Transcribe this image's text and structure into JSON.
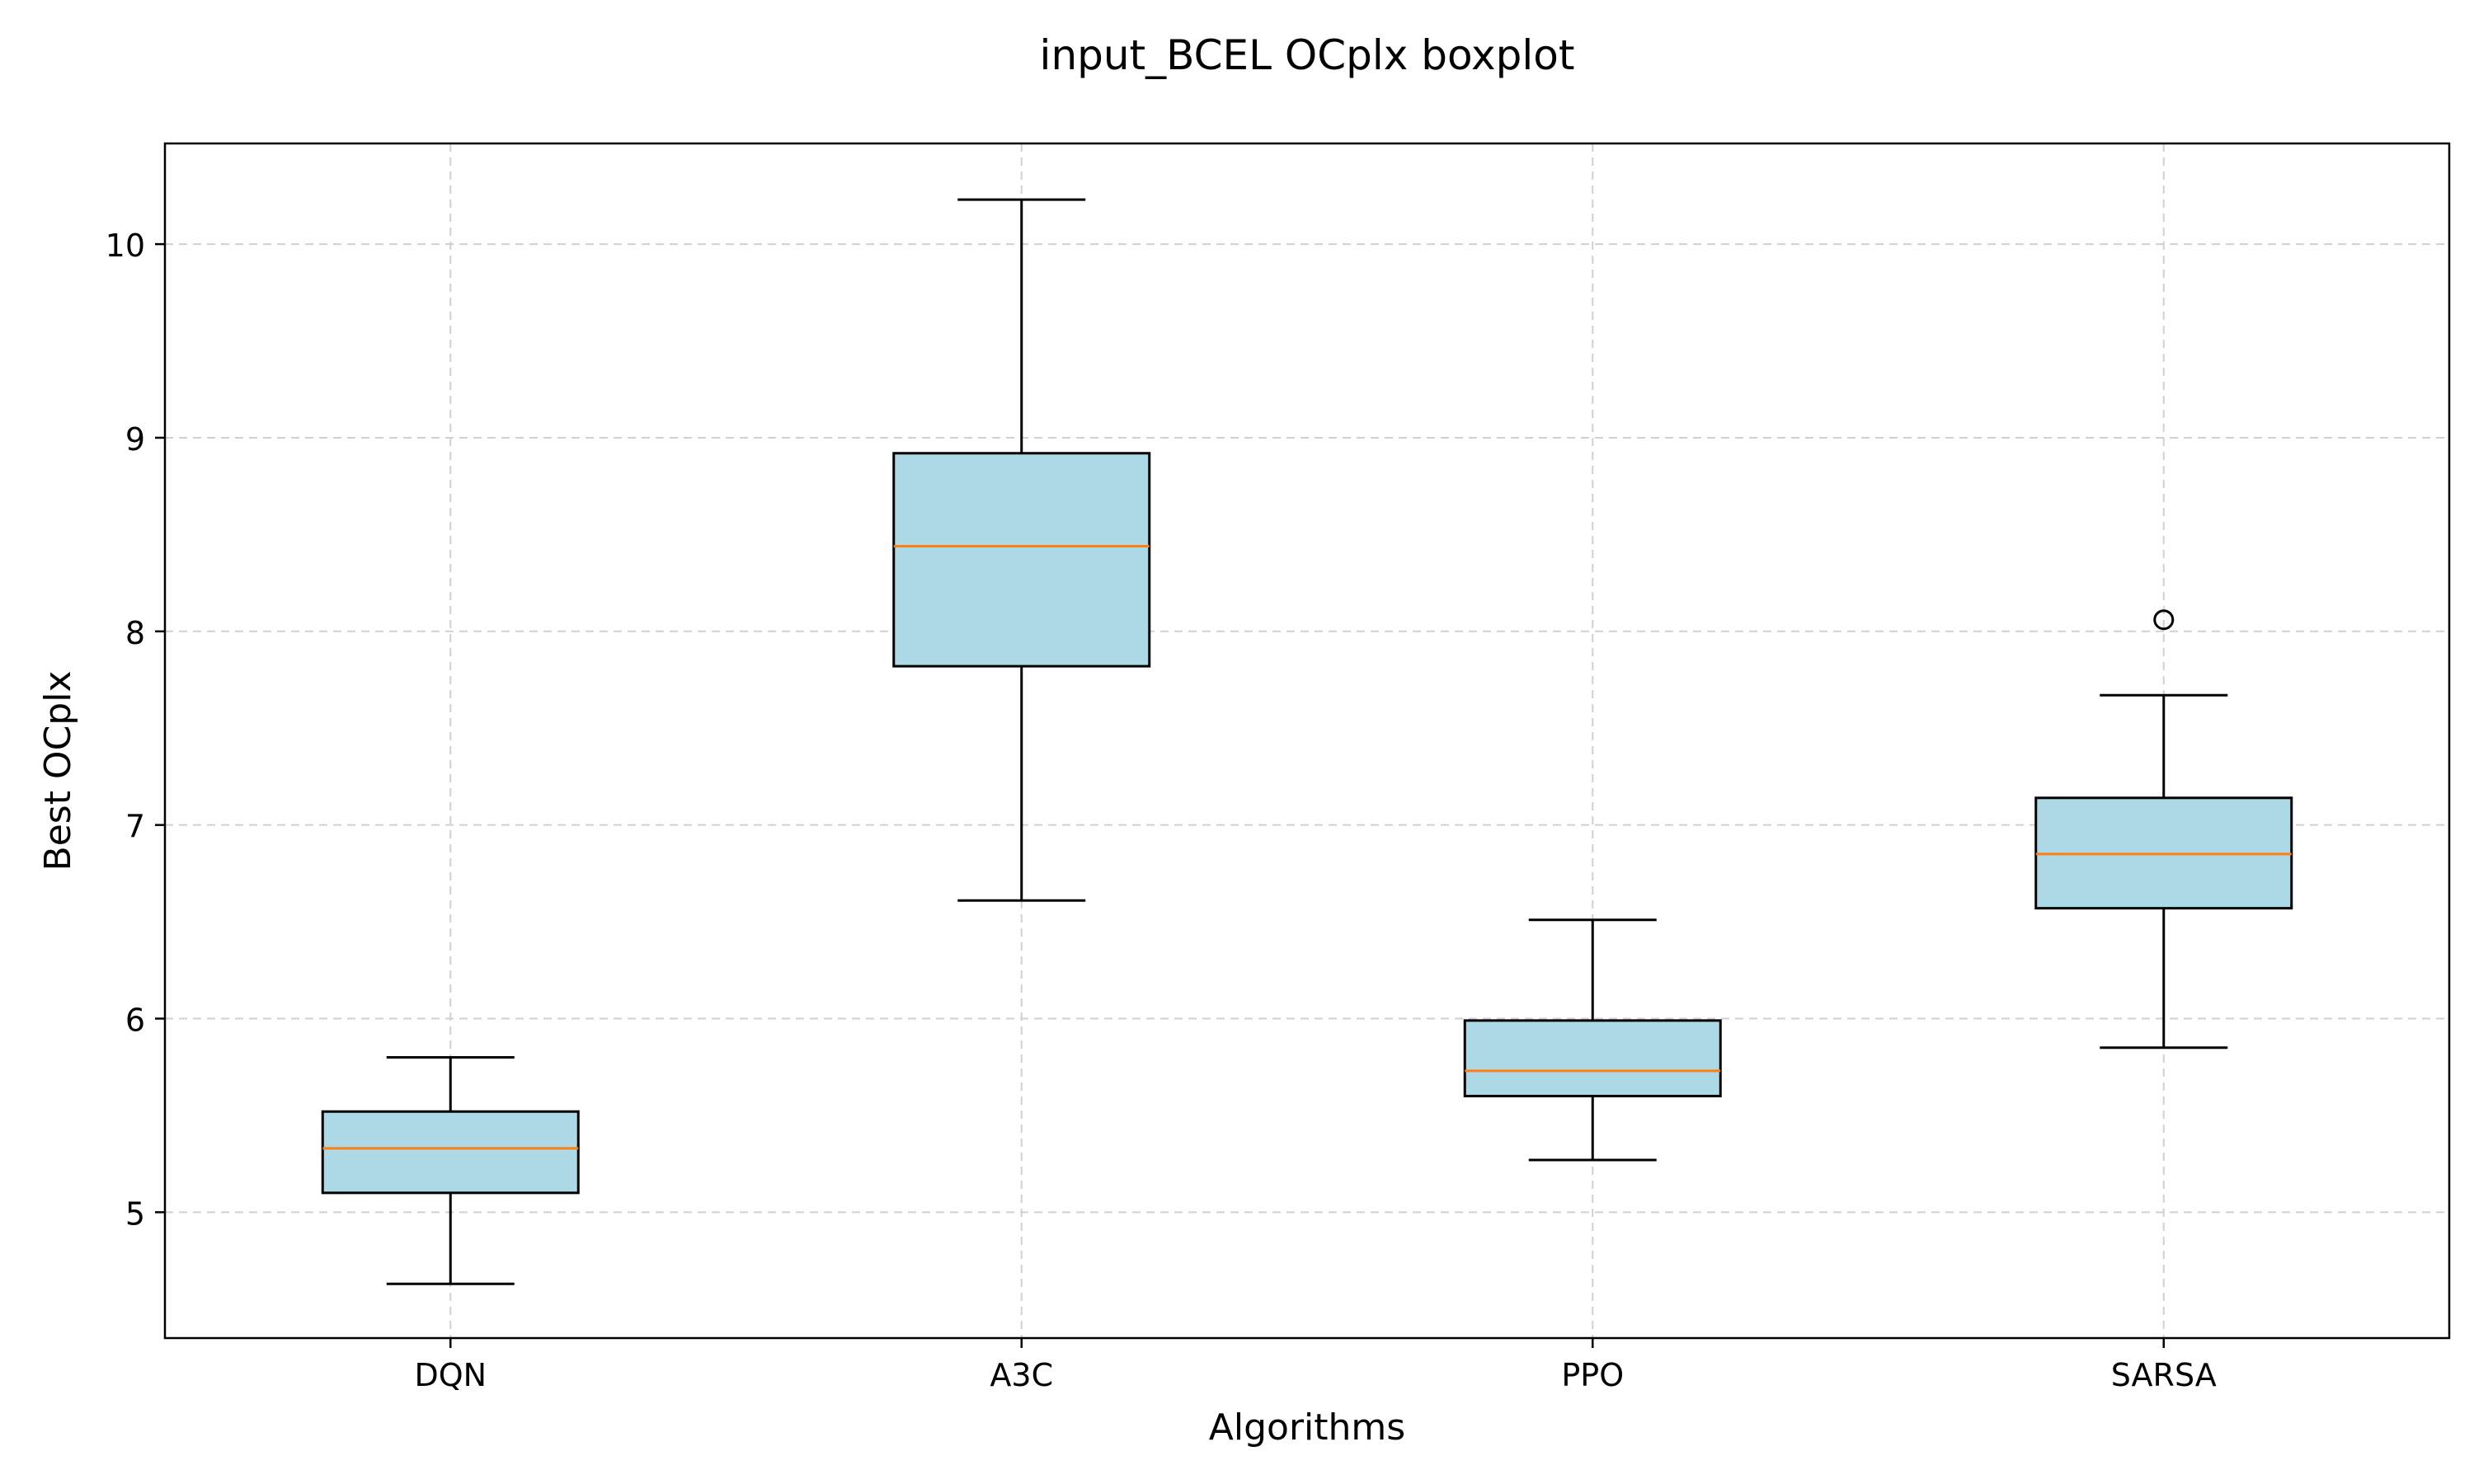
{
  "chart_data": {
    "type": "boxplot",
    "title": "input_BCEL OCplx boxplot",
    "xlabel": "Algorithms",
    "ylabel": "Best OCplx",
    "categories": [
      "DQN",
      "A3C",
      "PPO",
      "SARSA"
    ],
    "ylim": [
      4.35,
      10.52
    ],
    "yticks": [
      5,
      6,
      7,
      8,
      9,
      10
    ],
    "grid": true,
    "boxes": [
      {
        "label": "DQN",
        "whisker_low": 4.63,
        "q1": 5.1,
        "median": 5.33,
        "q3": 5.52,
        "whisker_high": 5.8,
        "outliers": []
      },
      {
        "label": "A3C",
        "whisker_low": 6.61,
        "q1": 7.82,
        "median": 8.44,
        "q3": 8.92,
        "whisker_high": 10.23,
        "outliers": []
      },
      {
        "label": "PPO",
        "whisker_low": 5.27,
        "q1": 5.6,
        "median": 5.73,
        "q3": 5.99,
        "whisker_high": 6.51,
        "outliers": []
      },
      {
        "label": "SARSA",
        "whisker_low": 5.85,
        "q1": 6.57,
        "median": 6.85,
        "q3": 7.14,
        "whisker_high": 7.67,
        "outliers": [
          8.06
        ]
      }
    ],
    "colors": {
      "box_fill": "#add8e6",
      "median": "#ff7f0e",
      "grid": "#d0d0d0"
    }
  }
}
